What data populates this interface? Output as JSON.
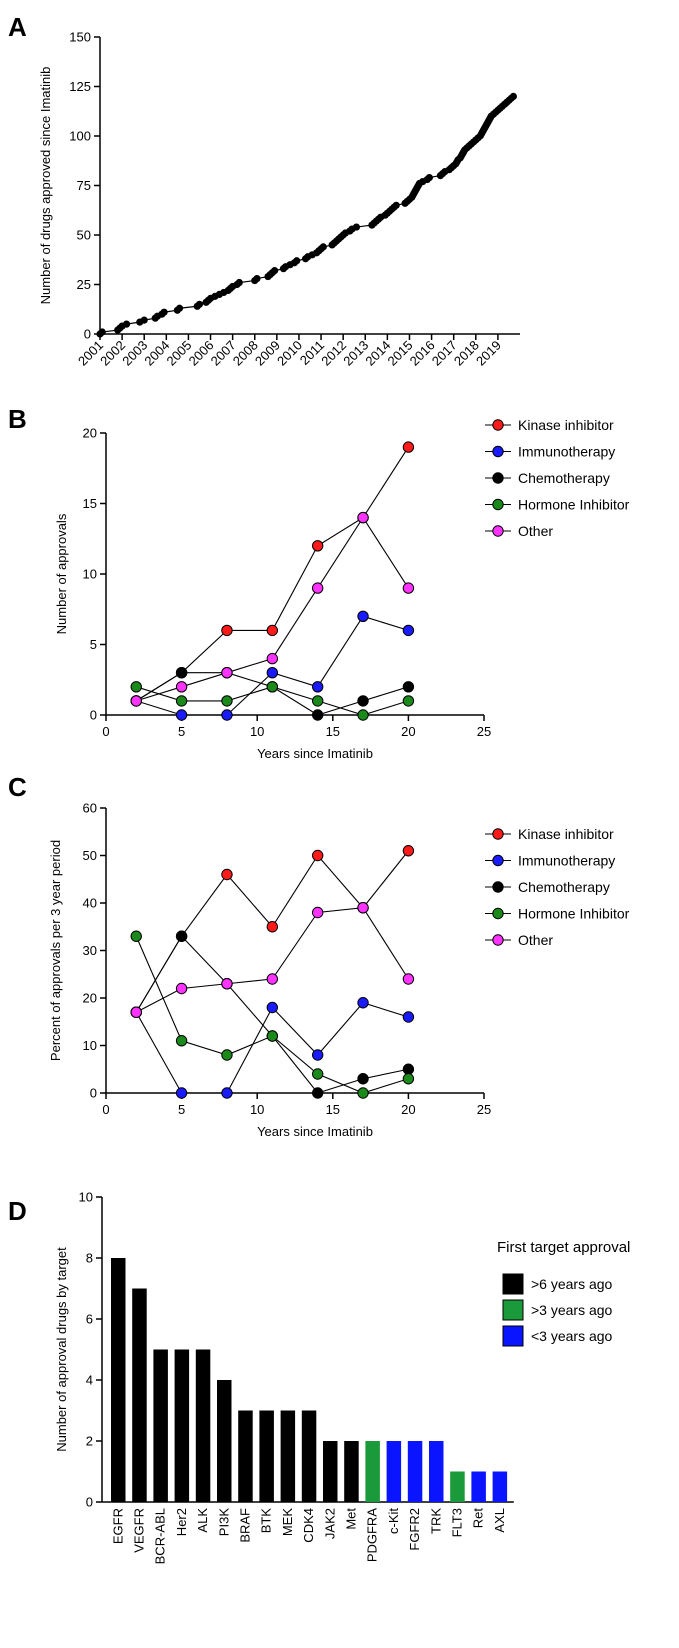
{
  "panels": [
    "A",
    "B",
    "C",
    "D"
  ],
  "chart_data": [
    {
      "panel": "A",
      "type": "scatter",
      "ylabel": "Number of drugs approved since Imatinib",
      "xlabel": "",
      "x_ticks": [
        "2001",
        "2002",
        "2003",
        "2004",
        "2005",
        "2006",
        "2007",
        "2008",
        "2009",
        "2010",
        "2011",
        "2012",
        "2013",
        "2014",
        "2015",
        "2016",
        "2017",
        "2018",
        "2019"
      ],
      "xlim": [
        2001,
        2020
      ],
      "ylim": [
        0,
        150
      ],
      "y_ticks": [
        0,
        25,
        50,
        75,
        100,
        125,
        150
      ],
      "points": [
        [
          2001.0,
          0
        ],
        [
          2001.1,
          1
        ],
        [
          2001.8,
          2
        ],
        [
          2001.9,
          3
        ],
        [
          2002.0,
          4
        ],
        [
          2002.2,
          5
        ],
        [
          2002.8,
          6
        ],
        [
          2003.0,
          7
        ],
        [
          2003.5,
          8
        ],
        [
          2003.6,
          9
        ],
        [
          2003.8,
          10
        ],
        [
          2003.9,
          11
        ],
        [
          2004.5,
          12
        ],
        [
          2004.6,
          13
        ],
        [
          2005.4,
          14
        ],
        [
          2005.5,
          15
        ],
        [
          2005.8,
          16
        ],
        [
          2005.9,
          17
        ],
        [
          2006.0,
          18
        ],
        [
          2006.2,
          19
        ],
        [
          2006.4,
          20
        ],
        [
          2006.6,
          21
        ],
        [
          2006.8,
          22
        ],
        [
          2006.9,
          23
        ],
        [
          2007.0,
          24
        ],
        [
          2007.2,
          25
        ],
        [
          2007.3,
          26
        ],
        [
          2008.0,
          27
        ],
        [
          2008.1,
          28
        ],
        [
          2008.6,
          29
        ],
        [
          2008.7,
          30
        ],
        [
          2008.8,
          31
        ],
        [
          2008.9,
          32
        ],
        [
          2009.3,
          33
        ],
        [
          2009.4,
          34
        ],
        [
          2009.6,
          35
        ],
        [
          2009.8,
          36
        ],
        [
          2009.9,
          37
        ],
        [
          2010.3,
          38
        ],
        [
          2010.4,
          39
        ],
        [
          2010.6,
          40
        ],
        [
          2010.8,
          41
        ],
        [
          2010.9,
          42
        ],
        [
          2011.0,
          43
        ],
        [
          2011.1,
          44
        ],
        [
          2011.5,
          45
        ],
        [
          2011.6,
          46
        ],
        [
          2011.7,
          47
        ],
        [
          2011.8,
          48
        ],
        [
          2011.9,
          49
        ],
        [
          2012.0,
          50
        ],
        [
          2012.1,
          51
        ],
        [
          2012.3,
          52
        ],
        [
          2012.4,
          53
        ],
        [
          2012.6,
          54
        ],
        [
          2013.3,
          55
        ],
        [
          2013.4,
          56
        ],
        [
          2013.5,
          57
        ],
        [
          2013.6,
          58
        ],
        [
          2013.7,
          59
        ],
        [
          2013.9,
          60
        ],
        [
          2014.0,
          61
        ],
        [
          2014.1,
          62
        ],
        [
          2014.2,
          63
        ],
        [
          2014.3,
          64
        ],
        [
          2014.4,
          65
        ],
        [
          2014.8,
          66
        ],
        [
          2014.9,
          67
        ],
        [
          2015.0,
          68
        ],
        [
          2015.1,
          69
        ],
        [
          2015.15,
          70
        ],
        [
          2015.2,
          71
        ],
        [
          2015.25,
          72
        ],
        [
          2015.3,
          73
        ],
        [
          2015.35,
          74
        ],
        [
          2015.4,
          75
        ],
        [
          2015.45,
          76
        ],
        [
          2015.6,
          77
        ],
        [
          2015.8,
          78
        ],
        [
          2015.9,
          79
        ],
        [
          2016.4,
          80
        ],
        [
          2016.5,
          81
        ],
        [
          2016.6,
          82
        ],
        [
          2016.8,
          83
        ],
        [
          2016.9,
          84
        ],
        [
          2017.0,
          85
        ],
        [
          2017.1,
          86
        ],
        [
          2017.15,
          87
        ],
        [
          2017.2,
          88
        ],
        [
          2017.3,
          89
        ],
        [
          2017.35,
          90
        ],
        [
          2017.4,
          91
        ],
        [
          2017.45,
          92
        ],
        [
          2017.5,
          93
        ],
        [
          2017.6,
          94
        ],
        [
          2017.7,
          95
        ],
        [
          2017.8,
          96
        ],
        [
          2017.9,
          97
        ],
        [
          2018.0,
          98
        ],
        [
          2018.1,
          99
        ],
        [
          2018.2,
          100
        ],
        [
          2018.25,
          101
        ],
        [
          2018.3,
          102
        ],
        [
          2018.35,
          103
        ],
        [
          2018.4,
          104
        ],
        [
          2018.45,
          105
        ],
        [
          2018.5,
          106
        ],
        [
          2018.55,
          107
        ],
        [
          2018.6,
          108
        ],
        [
          2018.65,
          109
        ],
        [
          2018.7,
          110
        ],
        [
          2018.8,
          111
        ],
        [
          2018.9,
          112
        ],
        [
          2019.0,
          113
        ],
        [
          2019.1,
          114
        ],
        [
          2019.2,
          115
        ],
        [
          2019.3,
          116
        ],
        [
          2019.4,
          117
        ],
        [
          2019.5,
          118
        ],
        [
          2019.6,
          119
        ],
        [
          2019.7,
          120
        ]
      ]
    },
    {
      "panel": "B",
      "type": "line",
      "xlabel": "Years since Imatinib",
      "ylabel": "Number of approvals",
      "xlim": [
        0,
        25
      ],
      "ylim": [
        0,
        20
      ],
      "x_ticks": [
        0,
        5,
        10,
        15,
        20,
        25
      ],
      "y_ticks": [
        0,
        5,
        10,
        15,
        20
      ],
      "legend_position": "top-right",
      "x": [
        2,
        5,
        8,
        11,
        14,
        17,
        20
      ],
      "series": [
        {
          "name": "Kinase inhibitor",
          "color": "#ff1a1a",
          "values": [
            1,
            3,
            6,
            6,
            12,
            14,
            19
          ]
        },
        {
          "name": "Immunotherapy",
          "color": "#1a1aff",
          "values": [
            1,
            0,
            0,
            3,
            2,
            7,
            6
          ]
        },
        {
          "name": "Chemotherapy",
          "color": "#000000",
          "values": [
            1,
            3,
            3,
            2,
            0,
            1,
            2
          ]
        },
        {
          "name": "Hormone Inhibitor",
          "color": "#1a8a1a",
          "values": [
            2,
            1,
            1,
            2,
            1,
            0,
            1
          ]
        },
        {
          "name": "Other",
          "color": "#ff33ff",
          "values": [
            1,
            2,
            3,
            4,
            9,
            14,
            9
          ]
        }
      ]
    },
    {
      "panel": "C",
      "type": "line",
      "xlabel": "Years since Imatinib",
      "ylabel": "Percent of approvals per 3 year period",
      "xlim": [
        0,
        25
      ],
      "ylim": [
        0,
        60
      ],
      "x_ticks": [
        0,
        5,
        10,
        15,
        20,
        25
      ],
      "y_ticks": [
        0,
        10,
        20,
        30,
        40,
        50,
        60
      ],
      "legend_position": "top-right",
      "x": [
        2,
        5,
        8,
        11,
        14,
        17,
        20
      ],
      "series": [
        {
          "name": "Kinase inhibitor",
          "color": "#ff1a1a",
          "values": [
            17,
            33,
            46,
            35,
            50,
            39,
            51
          ]
        },
        {
          "name": "Immunotherapy",
          "color": "#1a1aff",
          "values": [
            17,
            0,
            0,
            18,
            8,
            19,
            16
          ]
        },
        {
          "name": "Chemotherapy",
          "color": "#000000",
          "values": [
            17,
            33,
            23,
            12,
            0,
            3,
            5
          ]
        },
        {
          "name": "Hormone Inhibitor",
          "color": "#1a8a1a",
          "values": [
            33,
            11,
            8,
            12,
            4,
            0,
            3
          ]
        },
        {
          "name": "Other",
          "color": "#ff33ff",
          "values": [
            17,
            22,
            23,
            24,
            38,
            39,
            24
          ]
        }
      ]
    },
    {
      "panel": "D",
      "type": "bar",
      "xlabel": "",
      "ylabel": "Number of approval drugs by target",
      "ylim": [
        0,
        10
      ],
      "y_ticks": [
        0,
        2,
        4,
        6,
        8,
        10
      ],
      "legend_title": "First target approval",
      "legend_position": "top-right",
      "groups": [
        {
          "name": ">6 years ago",
          "color": "#000000"
        },
        {
          "name": ">3 years ago",
          "color": "#1a9a3a"
        },
        {
          "name": "<3 years ago",
          "color": "#0a14ff"
        }
      ],
      "categories": [
        "EGFR",
        "VEGFR",
        "BCR-ABL",
        "Her2",
        "ALK",
        "PI3K",
        "BRAF",
        "BTK",
        "MEK",
        "CDK4",
        "JAK2",
        "Met",
        "PDGFRA",
        "c-Kit",
        "FGFR2",
        "TRK",
        "FLT3",
        "Ret",
        "AXL"
      ],
      "values": [
        8,
        7,
        5,
        5,
        5,
        4,
        3,
        3,
        3,
        3,
        2,
        2,
        2,
        2,
        2,
        2,
        1,
        1,
        1
      ],
      "group_index": [
        0,
        0,
        0,
        0,
        0,
        0,
        0,
        0,
        0,
        0,
        0,
        0,
        1,
        2,
        2,
        2,
        1,
        2,
        2
      ]
    }
  ]
}
